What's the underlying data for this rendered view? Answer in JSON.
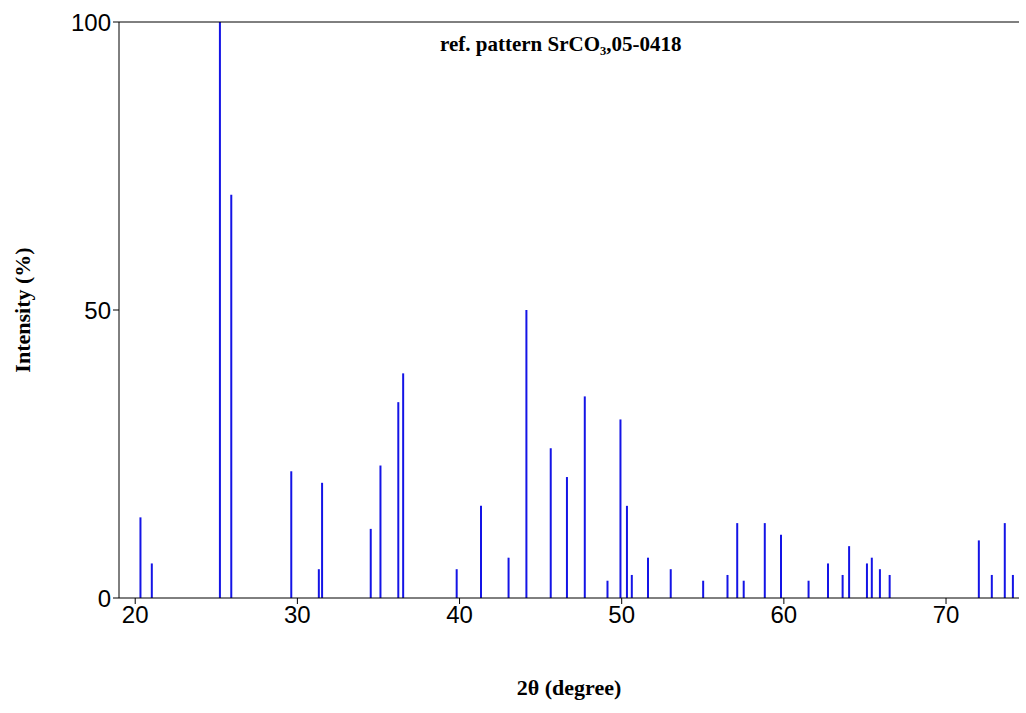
{
  "chart_data": {
    "type": "bar",
    "title": "ref. pattern SrCO₃,05-0418",
    "x_label": "2θ (degree)",
    "y_label": "Intensity (%)",
    "color": "#1414e6",
    "x": [
      20.3,
      21.0,
      25.2,
      25.9,
      29.6,
      31.3,
      31.5,
      34.5,
      35.1,
      36.2,
      36.5,
      39.8,
      41.3,
      43.0,
      44.1,
      45.6,
      46.6,
      47.7,
      49.1,
      49.9,
      50.3,
      50.6,
      51.6,
      53.0,
      55.0,
      56.5,
      57.1,
      57.5,
      58.8,
      59.8,
      61.5,
      62.7,
      63.6,
      64.0,
      65.1,
      65.4,
      65.9,
      66.5,
      72.0,
      72.8,
      73.6,
      74.1
    ],
    "values": [
      14,
      6,
      100,
      70,
      22,
      5,
      20,
      12,
      23,
      34,
      39,
      5,
      16,
      7,
      50,
      26,
      21,
      35,
      3,
      31,
      16,
      4,
      7,
      5,
      3,
      4,
      13,
      3,
      13,
      11,
      3,
      6,
      4,
      9,
      6,
      7,
      5,
      4,
      10,
      4,
      13,
      4
    ],
    "xlim": [
      19,
      74.5
    ],
    "xticks": [
      20,
      30,
      40,
      50,
      60,
      70
    ],
    "ylim": [
      0,
      100
    ],
    "yticks": [
      0,
      50,
      100
    ],
    "grid": false
  }
}
